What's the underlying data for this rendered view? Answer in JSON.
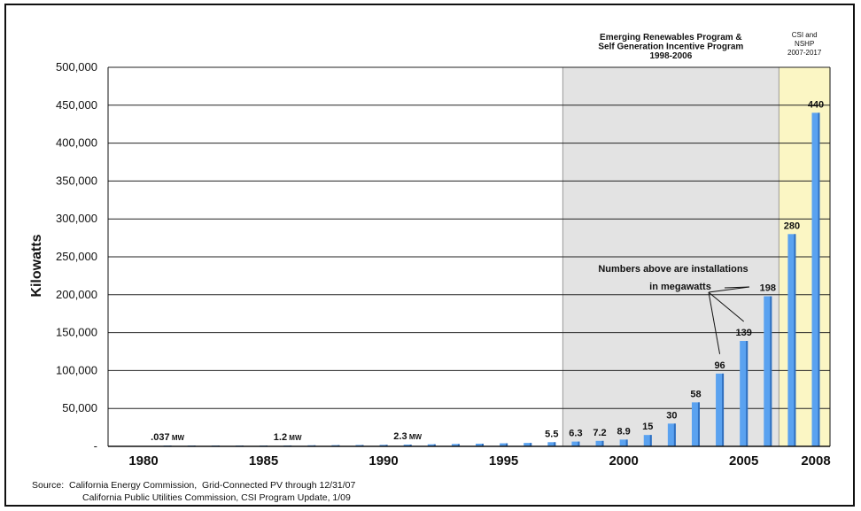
{
  "chart_data": {
    "type": "bar",
    "ylabel": "Kilowatts",
    "ylim": [
      0,
      500000
    ],
    "yticks": [
      "-",
      "50,000",
      "100,000",
      "150,000",
      "200,000",
      "250,000",
      "300,000",
      "350,000",
      "400,000",
      "450,000",
      "500,000"
    ],
    "x_tick_labels": [
      "1980",
      "1985",
      "1990",
      "1995",
      "2000",
      "2005",
      "2008"
    ],
    "categories": [
      "1981",
      "1982",
      "1983",
      "1984",
      "1985",
      "1986",
      "1987",
      "1988",
      "1989",
      "1990",
      "1991",
      "1992",
      "1993",
      "1994",
      "1995",
      "1996",
      "1997",
      "1998",
      "1999",
      "2000",
      "2001",
      "2002",
      "2003",
      "2004",
      "2005",
      "2006",
      "2007",
      "2008"
    ],
    "values": [
      37,
      150,
      300,
      500,
      700,
      1200,
      1400,
      1600,
      1800,
      2000,
      2300,
      2700,
      3100,
      3500,
      4000,
      4500,
      5500,
      6300,
      7200,
      8900,
      15000,
      30000,
      58000,
      96000,
      139000,
      198000,
      280000,
      440000
    ],
    "data_labels": [
      {
        "category": "1981",
        "text": ".037",
        "unit": "MW"
      },
      {
        "category": "1986",
        "text": "1.2",
        "unit": "MW"
      },
      {
        "category": "1991",
        "text": "2.3",
        "unit": "MW"
      },
      {
        "category": "1997",
        "text": "5.5"
      },
      {
        "category": "1998",
        "text": "6.3"
      },
      {
        "category": "1999",
        "text": "7.2"
      },
      {
        "category": "2000",
        "text": "8.9"
      },
      {
        "category": "2001",
        "text": "15"
      },
      {
        "category": "2002",
        "text": "30"
      },
      {
        "category": "2003",
        "text": "58"
      },
      {
        "category": "2004",
        "text": "96"
      },
      {
        "category": "2005",
        "text": "139"
      },
      {
        "category": "2006",
        "text": "198"
      },
      {
        "category": "2007",
        "text": "280"
      },
      {
        "category": "2008",
        "text": "440"
      }
    ],
    "regions": [
      {
        "lines": [
          "Emerging Renewables Program &",
          "Self Generation Incentive Program",
          "1998-2006"
        ],
        "from": 1998,
        "to": 2006,
        "color": "#e3e3e3"
      },
      {
        "lines": [
          "CSI and",
          "NSHP",
          "2007-2017"
        ],
        "from": 2007,
        "to": 2008,
        "color": "#fbf6c4"
      }
    ],
    "annotation": {
      "lines": [
        "Numbers above are installations",
        "in megawatts"
      ],
      "targets": [
        "2004",
        "2005",
        "2006"
      ]
    },
    "bar_color": "#5aa2f0",
    "grid": true
  },
  "source": {
    "label": "Source:",
    "lines": [
      "California Energy Commission,  Grid-Connected PV through 12/31/07",
      "California Public Utilities Commission, CSI Program Update, 1/09"
    ]
  }
}
